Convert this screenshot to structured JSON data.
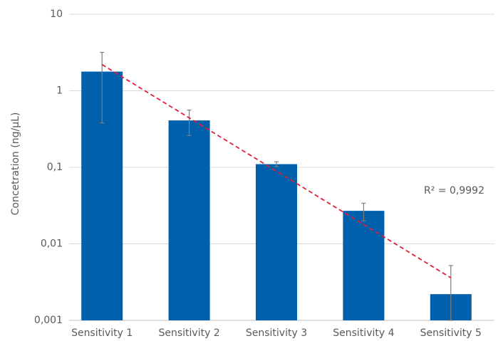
{
  "chart_data": {
    "type": "bar",
    "y_label": "Concetration  (ng/µL)",
    "categories": [
      "Sensitivity 1",
      "Sensitivity 2",
      "Sensitivity 3",
      "Sensitivity 4",
      "Sensitivity 5"
    ],
    "values": [
      1.78,
      0.41,
      0.11,
      0.027,
      0.0022
    ],
    "errors": [
      1.4,
      0.15,
      0.008,
      0.007,
      0.003
    ],
    "color": "#0060ac",
    "error_color": "#7f7f7f",
    "log_scale": true,
    "grid": true,
    "ylim": [
      0.001,
      10
    ],
    "yticks": [
      {
        "value": 0.001,
        "label": "0,001"
      },
      {
        "value": 0.01,
        "label": "0,01"
      },
      {
        "value": 0.1,
        "label": "0,1"
      },
      1,
      10
    ],
    "trendline": {
      "start": 2.2,
      "end": 0.0036,
      "color": "#e0203a",
      "label": "R² = 0,9992"
    }
  }
}
